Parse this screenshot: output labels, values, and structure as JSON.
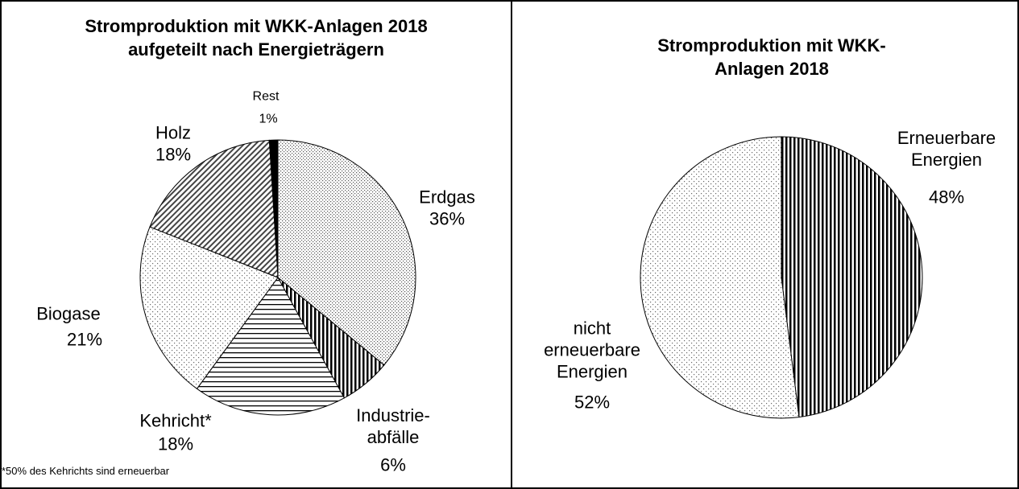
{
  "chart_data": [
    {
      "type": "pie",
      "title": "Stromproduktion mit WKK-Anlagen 2018\naufgeteilt nach Energieträgern",
      "categories": [
        "Rest",
        "Erdgas",
        "Industrie-\nabfälle",
        "Kehricht*",
        "Biogase",
        "Holz"
      ],
      "values": [
        1,
        36,
        6,
        18,
        21,
        18
      ],
      "value_labels": [
        "1%",
        "36%",
        "6%",
        "18%",
        "21%",
        "18%"
      ],
      "patterns": [
        "solid",
        "dense-dots",
        "vstripes",
        "hlines",
        "dots",
        "diag"
      ],
      "footnote": "*50% des Kehrichts  sind erneuerbar"
    },
    {
      "type": "pie",
      "title": "Stromproduktion mit WKK-Anlagen 2018",
      "categories": [
        "Erneuerbare\nEnergien",
        "nicht\nerneuerbare\nEnergien"
      ],
      "values": [
        48,
        52
      ],
      "value_labels": [
        "48%",
        "52%"
      ],
      "patterns": [
        "vstripes",
        "dots"
      ]
    }
  ]
}
